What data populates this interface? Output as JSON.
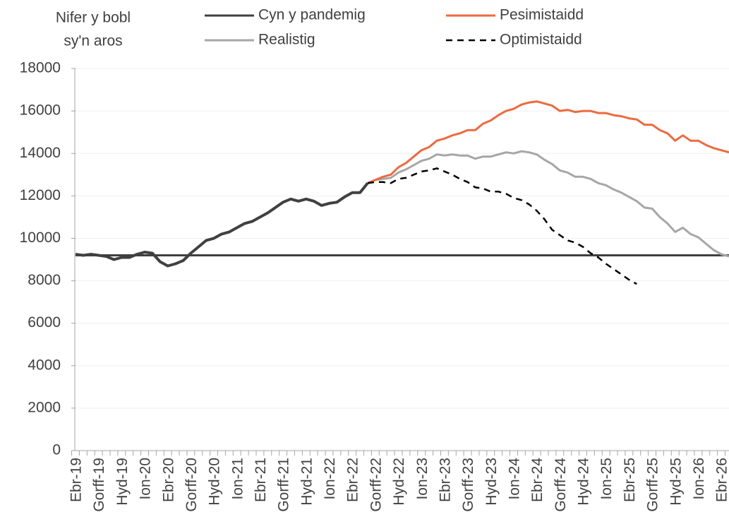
{
  "chart_data": {
    "type": "line",
    "ylabel": [
      "Nifer y bobl",
      "sy'n aros"
    ],
    "categories": [
      "Ebr-19",
      null,
      null,
      "Gorff-19",
      null,
      null,
      "Hyd-19",
      null,
      null,
      "Ion-20",
      null,
      null,
      "Ebr-20",
      null,
      null,
      "Gorff-20",
      null,
      null,
      "Hyd-20",
      null,
      null,
      "Ion-21",
      null,
      null,
      "Ebr-21",
      null,
      null,
      "Gorff-21",
      null,
      null,
      "Hyd-21",
      null,
      null,
      "Ion-22",
      null,
      null,
      "Ebr-22",
      null,
      null,
      "Gorff-22",
      null,
      null,
      "Hyd-22",
      null,
      null,
      "Ion-23",
      null,
      null,
      "Ebr-23",
      null,
      null,
      "Gorff-23",
      null,
      null,
      "Hyd-23",
      null,
      null,
      "Ion-24",
      null,
      null,
      "Ebr-24",
      null,
      null,
      "Gorff-24",
      null,
      null,
      "Hyd-24",
      null,
      null,
      "Ion-25",
      null,
      null,
      "Ebr-25",
      null,
      null,
      "Gorff-25",
      null,
      null,
      "Hyd-25",
      null,
      null,
      "Ion-26",
      null,
      null,
      "Ebr-26",
      null
    ],
    "ylim": [
      0,
      18000
    ],
    "yticks": [
      0,
      2000,
      4000,
      6000,
      8000,
      10000,
      12000,
      14000,
      16000,
      18000
    ],
    "grid": true,
    "series": [
      {
        "name": "Cyn y pandemig",
        "color": "#404040",
        "width": 3,
        "dash": false,
        "values": [
          9200,
          9200,
          9200,
          9200,
          9200,
          9200,
          9200,
          9200,
          9200,
          9200,
          9200,
          9200,
          9200,
          9200,
          9200,
          9200,
          9200,
          9200,
          9200,
          9200,
          9200,
          9200,
          9200,
          9200,
          9200,
          9200,
          9200,
          9200,
          9200,
          9200,
          9200,
          9200,
          9200,
          9200,
          9200,
          9200,
          9200,
          9200,
          9200,
          9200,
          9200,
          9200,
          9200,
          9200,
          9200,
          9200,
          9200,
          9200,
          9200,
          9200,
          9200,
          9200,
          9200,
          9200,
          9200,
          9200,
          9200,
          9200,
          9200,
          9200,
          9200,
          9200,
          9200,
          9200,
          9200,
          9200,
          9200,
          9200,
          9200,
          9200,
          9200,
          9200,
          9200,
          9200,
          9200,
          9200,
          9200,
          9200,
          9200,
          9200,
          9200,
          9200,
          9200,
          9200,
          9200,
          9200
        ]
      },
      {
        "name": "Realistig",
        "color": "#a6a6a6",
        "width": 3,
        "dash": false,
        "values": [
          null,
          null,
          null,
          null,
          null,
          null,
          null,
          null,
          null,
          null,
          null,
          null,
          null,
          null,
          null,
          null,
          null,
          null,
          null,
          null,
          null,
          null,
          null,
          null,
          null,
          null,
          null,
          null,
          null,
          null,
          null,
          null,
          null,
          null,
          null,
          null,
          null,
          null,
          12600,
          12750,
          12800,
          12850,
          13100,
          13250,
          13450,
          13650,
          13750,
          13950,
          13900,
          13950,
          13900,
          13900,
          13750,
          13850,
          13850,
          13950,
          14050,
          14000,
          14100,
          14050,
          13950,
          13700,
          13500,
          13200,
          13100,
          12900,
          12900,
          12800,
          12600,
          12500,
          12300,
          12150,
          11950,
          11750,
          11450,
          11400,
          11000,
          10700,
          10300,
          10500,
          10200,
          10050,
          9750,
          9450,
          9250,
          9150
        ]
      },
      {
        "name": "Pesimistaidd",
        "color": "#ed6a3f",
        "width": 3,
        "dash": false,
        "values": [
          null,
          null,
          null,
          null,
          null,
          null,
          null,
          null,
          null,
          null,
          null,
          null,
          null,
          null,
          null,
          null,
          null,
          null,
          null,
          null,
          null,
          null,
          null,
          null,
          null,
          null,
          null,
          null,
          null,
          null,
          null,
          null,
          null,
          null,
          null,
          null,
          null,
          null,
          12600,
          12750,
          12900,
          13000,
          13350,
          13550,
          13850,
          14150,
          14300,
          14600,
          14700,
          14850,
          14950,
          15100,
          15100,
          15400,
          15550,
          15800,
          16000,
          16100,
          16300,
          16400,
          16450,
          16350,
          16250,
          16000,
          16050,
          15950,
          16000,
          16000,
          15900,
          15900,
          15800,
          15750,
          15650,
          15600,
          15350,
          15350,
          15100,
          14950,
          14600,
          14850,
          14600,
          14600,
          14400,
          14250,
          14150,
          14050
        ]
      },
      {
        "name": "Optimistaidd",
        "color": "#000000",
        "width": 2.5,
        "dash": true,
        "values": [
          null,
          null,
          null,
          null,
          null,
          null,
          null,
          null,
          null,
          null,
          null,
          null,
          null,
          null,
          null,
          null,
          null,
          null,
          null,
          null,
          null,
          null,
          null,
          null,
          null,
          null,
          null,
          null,
          null,
          null,
          null,
          null,
          null,
          null,
          null,
          null,
          null,
          null,
          12600,
          12650,
          12650,
          12600,
          12800,
          12850,
          13000,
          13150,
          13200,
          13300,
          13150,
          13000,
          12800,
          12650,
          12400,
          12350,
          12200,
          12200,
          12100,
          11900,
          11800,
          11600,
          11300,
          10900,
          10400,
          10150,
          9900,
          9800,
          9600,
          9300,
          9100,
          8800,
          8550,
          8300,
          8050,
          7850,
          null,
          null,
          null,
          null,
          null,
          null,
          null,
          null,
          null,
          null,
          null,
          null
        ]
      },
      {
        "color": "#404040",
        "width": 4,
        "dash": false,
        "values": [
          9250,
          9200,
          9250,
          9200,
          9150,
          9000,
          9100,
          9100,
          9250,
          9350,
          9300,
          8900,
          8700,
          8800,
          8950,
          9300,
          9600,
          9900,
          10000,
          10200,
          10300,
          10500,
          10700,
          10800,
          11000,
          11200,
          11450,
          11700,
          11850,
          11750,
          11850,
          11750,
          11550,
          11650,
          11700,
          11950,
          12150,
          12150,
          12600,
          null,
          null,
          null,
          null,
          null,
          null,
          null,
          null,
          null,
          null,
          null,
          null,
          null,
          null,
          null,
          null,
          null,
          null,
          null,
          null,
          null,
          null,
          null,
          null,
          null,
          null,
          null,
          null,
          null,
          null,
          null,
          null,
          null,
          null,
          null,
          null,
          null,
          null,
          null,
          null,
          null,
          null,
          null,
          null,
          null,
          null,
          null
        ]
      }
    ]
  }
}
